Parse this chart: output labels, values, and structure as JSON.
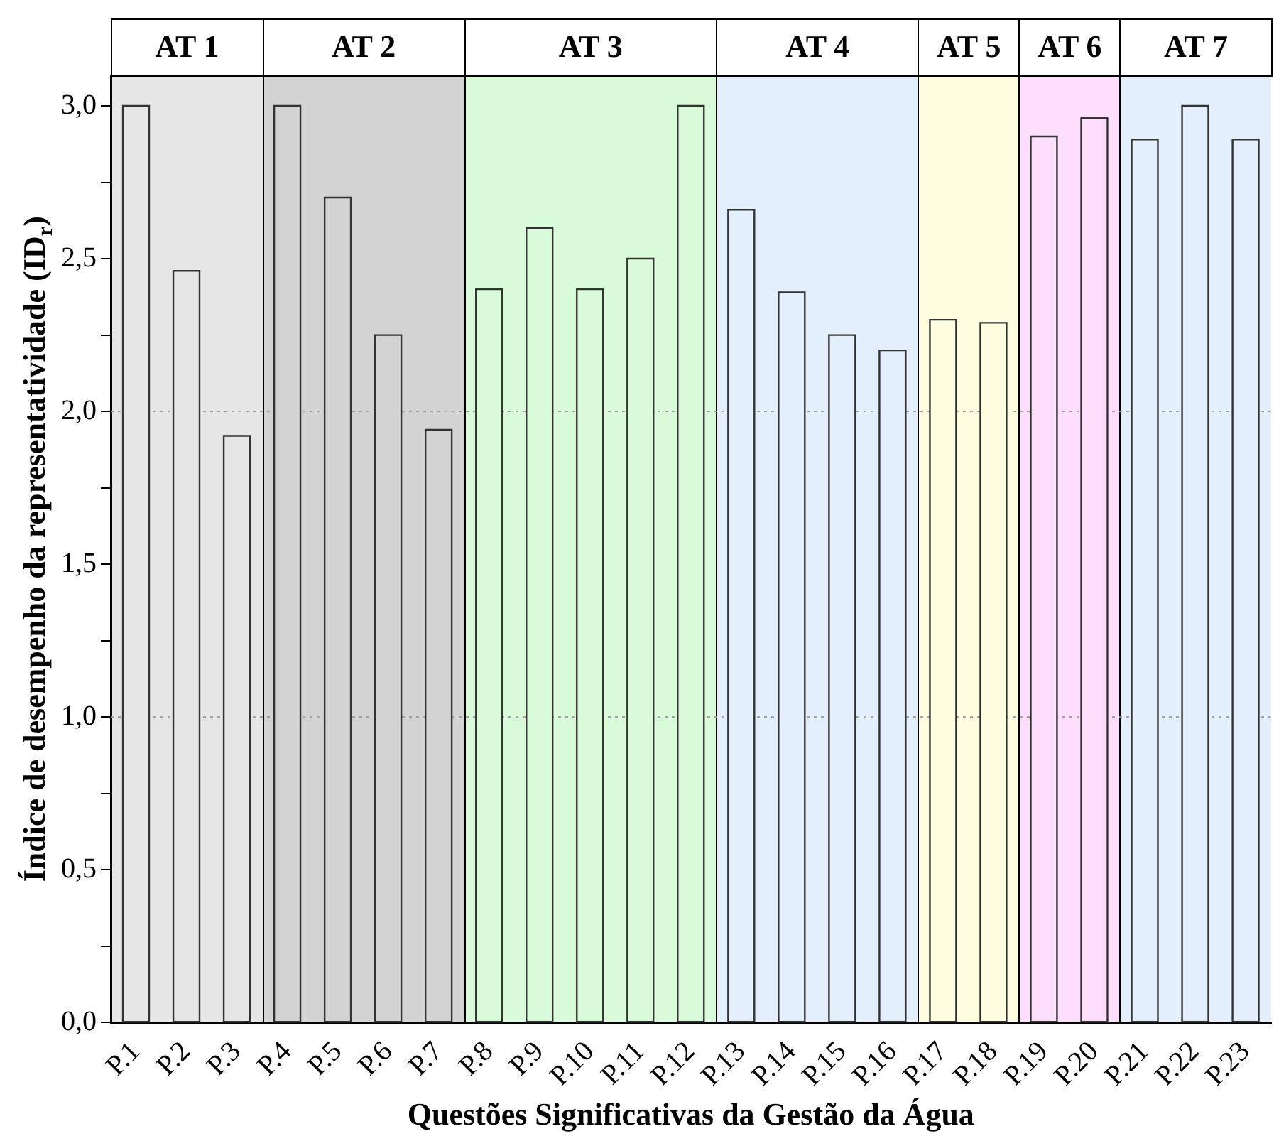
{
  "chart_data": {
    "type": "bar",
    "xlabel": "Questões Significativas da Gestão da Água",
    "ylabel": "Índice de desempenho da representatividade (ID$_{r}$)",
    "categories": [
      "P.1",
      "P.2",
      "P.3",
      "P.4",
      "P.5",
      "P.6",
      "P.7",
      "P.8",
      "P.9",
      "P.10",
      "P.11",
      "P.12",
      "P.13",
      "P.14",
      "P.15",
      "P.16",
      "P.17",
      "P.18",
      "P.19",
      "P.20",
      "P.21",
      "P.22",
      "P.23"
    ],
    "values": [
      3.0,
      2.46,
      1.92,
      3.0,
      2.7,
      2.25,
      1.94,
      2.4,
      2.6,
      2.4,
      2.5,
      3.0,
      2.66,
      2.39,
      2.25,
      2.2,
      2.3,
      2.29,
      2.9,
      2.96,
      2.89,
      3.0,
      2.89
    ],
    "colors": [
      "#e6e6e6",
      "#e6e6e6",
      "#e6e6e6",
      "#d3d3d3",
      "#d3d3d3",
      "#d3d3d3",
      "#d3d3d3",
      "#d9fbd9",
      "#d9fbd9",
      "#d9fbd9",
      "#d9fbd9",
      "#d9fbd9",
      "#e3effd",
      "#e3effd",
      "#e3effd",
      "#e3effd",
      "#fefde0",
      "#fefde0",
      "#fddffd",
      "#fddffd",
      "#e3effd",
      "#e3effd",
      "#e3effd"
    ],
    "ylim": [
      0,
      3.1
    ],
    "yticks": [
      {
        "value": 0,
        "label": "0,0"
      },
      {
        "value": 0.25,
        "label": null
      },
      {
        "value": 0.5,
        "label": "0,5"
      },
      {
        "value": 0.75,
        "label": null
      },
      {
        "value": 1.0,
        "label": "1,0"
      },
      {
        "value": 1.25,
        "label": null
      },
      {
        "value": 1.5,
        "label": "1,5"
      },
      {
        "value": 1.75,
        "label": null
      },
      {
        "value": 2.0,
        "label": "2,0"
      },
      {
        "value": 2.25,
        "label": null
      },
      {
        "value": 2.5,
        "label": "2,5"
      },
      {
        "value": 2.75,
        "label": null
      },
      {
        "value": 3.0,
        "label": "3,0"
      }
    ],
    "annotations": [
      "AT 1",
      "AT 2",
      "AT 3",
      "AT 4",
      "AT 5",
      "AT 6",
      "AT 7"
    ],
    "ref_lines": [
      {
        "axis": "y",
        "value": 1.0,
        "line_style": "dotted",
        "color": "#999999"
      },
      {
        "axis": "y",
        "value": 2.0,
        "line_style": "dotted",
        "color": "#999999"
      }
    ],
    "legend": false
  }
}
